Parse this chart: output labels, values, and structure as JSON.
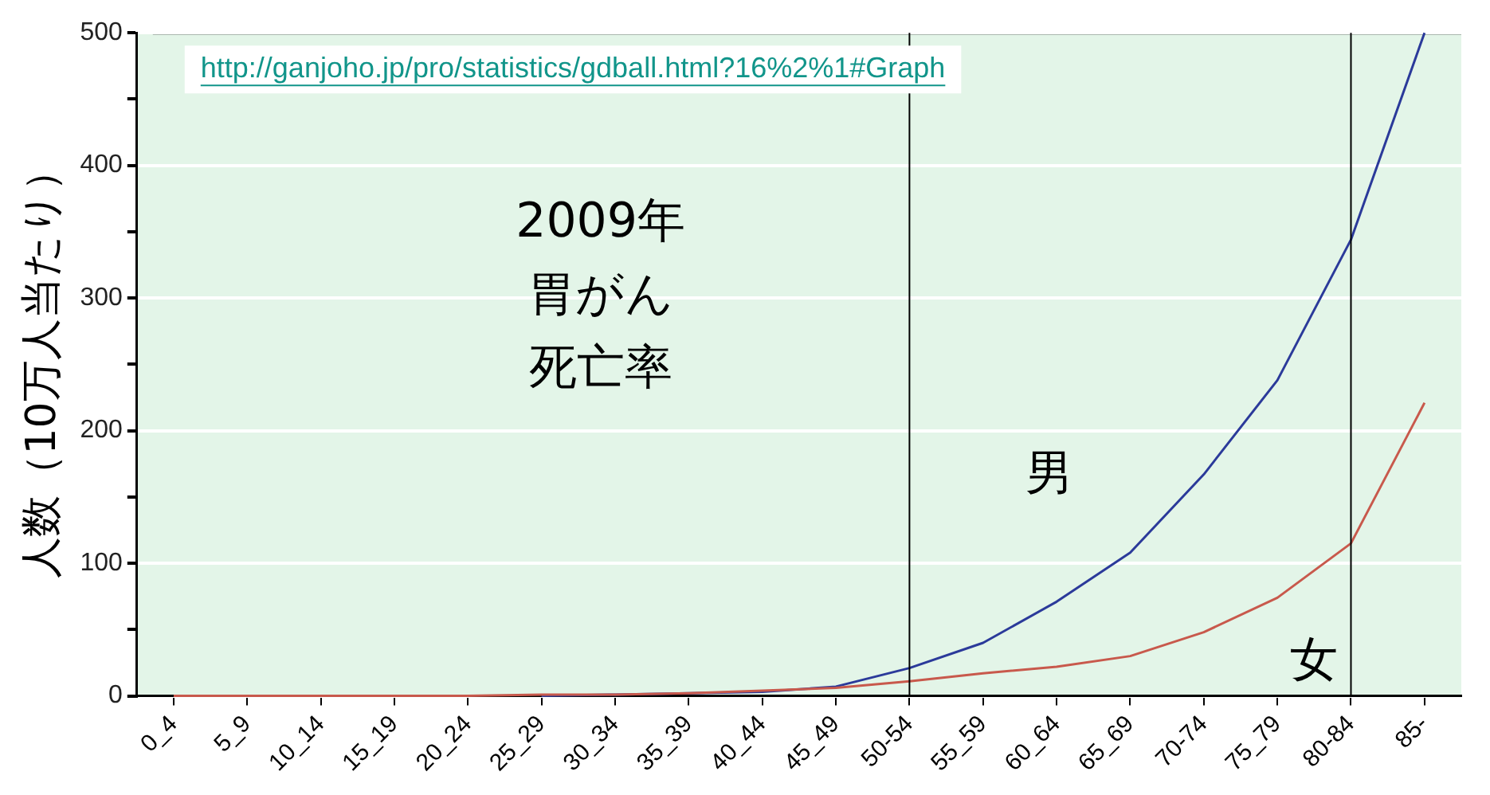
{
  "chart_data": {
    "type": "line",
    "title": "2009年胃がん死亡率",
    "ylabel": "人数（10万人当たり）",
    "annotations": [
      "http://ganjoho.jp/pro/statistics/gdball.html?16%2%1#Graph"
    ],
    "categories": [
      "0_4",
      "5_9",
      "10_14",
      "15_19",
      "20_24",
      "25_29",
      "30_34",
      "35_39",
      "40_44",
      "45_49",
      "50-54",
      "55_59",
      "60_64",
      "65_69",
      "70-74",
      "75_79",
      "80-84",
      "85-"
    ],
    "series": [
      {
        "name": "男",
        "color": "#2b3a9a",
        "values": [
          null,
          null,
          null,
          null,
          null,
          0,
          1,
          2,
          3,
          7,
          21,
          40,
          71,
          108,
          167,
          238,
          344,
          500
        ]
      },
      {
        "name": "女",
        "color": "#c8594c",
        "values": [
          0,
          0,
          0,
          0,
          0,
          1,
          1,
          2,
          4,
          6,
          11,
          17,
          22,
          30,
          48,
          74,
          115,
          221
        ]
      }
    ],
    "ylim": [
      0,
      500
    ],
    "yticks": [
      0,
      {
        "value": 50,
        "label": null
      },
      100,
      {
        "value": 150,
        "label": null
      },
      200,
      {
        "value": 250,
        "label": null
      },
      300,
      {
        "value": 350,
        "label": null
      },
      400,
      {
        "value": 450,
        "label": null
      },
      500
    ],
    "ref_lines": [
      {
        "axis": "x",
        "value": "50-54"
      },
      {
        "axis": "x",
        "value": "80-84"
      }
    ],
    "grid": "y",
    "legend": false,
    "marker": "none",
    "line_style": "solid"
  }
}
